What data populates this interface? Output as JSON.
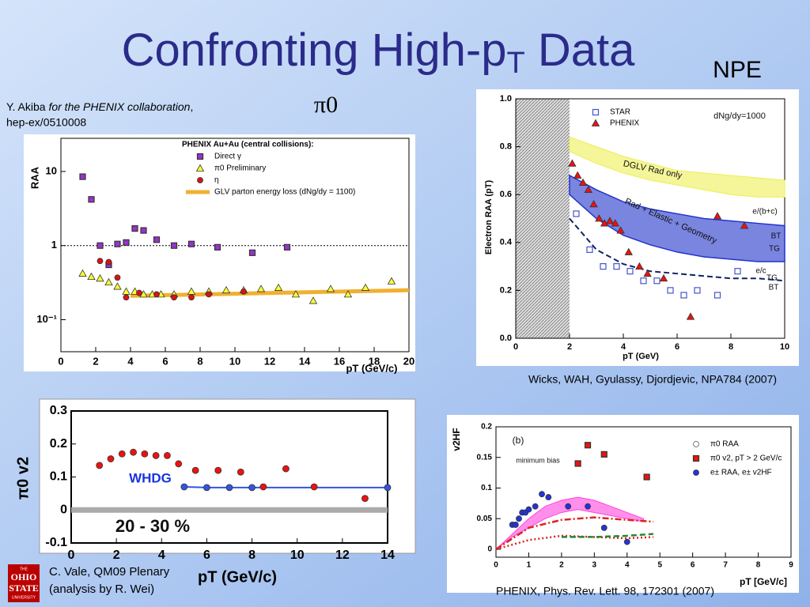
{
  "slide": {
    "title_parts": [
      "Confronting High-p",
      "T",
      " Data"
    ],
    "npe": "NPE",
    "pi0": "π0",
    "cite1_author": "Y. Akiba",
    "cite1_collab": "for the PHENIX collaboration",
    "cite1_comma": ",",
    "cite1_ref": "hep-ex/0510008",
    "cite2": "Wicks, WAH, Gyulassy, Djordjevic, NPA784 (2007)",
    "cite3_line1": "C. Vale, QM09 Plenary",
    "cite3_line2": "(analysis by R. Wei)",
    "cite4": "PHENIX, Phys. Rev. Lett. 98, 172301 (2007)",
    "logo": [
      "THE",
      "OHIO",
      "STATE",
      "UNIVERSITY"
    ]
  },
  "chart_data": [
    {
      "type": "scatter",
      "y_label": "RAA",
      "x_label": "pT (GeV/c)",
      "legend_title": "PHENIX Au+Au (central collisions):",
      "log_y": true,
      "xlim": [
        0,
        20
      ],
      "ylim": [
        0.037,
        28
      ],
      "xticks": [
        0,
        2,
        4,
        6,
        8,
        10,
        12,
        14,
        16,
        18,
        20
      ],
      "yticks": [
        {
          "value": 0.1,
          "label": "10⁻¹"
        },
        1,
        10
      ],
      "ref_y": 1,
      "annotations": [],
      "series": [
        {
          "name": "Direct γ",
          "color": "#9933cc",
          "marker": "square",
          "x": [
            1.25,
            1.75,
            2.25,
            2.75,
            3.25,
            3.75,
            4.25,
            4.75,
            5.5,
            6.5,
            7.5,
            9,
            11,
            13
          ],
          "values": [
            8.5,
            4.2,
            1,
            0.55,
            1.05,
            1.1,
            1.7,
            1.6,
            1.2,
            1.0,
            1.05,
            0.95,
            0.8,
            0.95
          ]
        },
        {
          "name": "π0 Preliminary",
          "color": "#ffff33",
          "marker": "triangle",
          "x": [
            1.25,
            1.75,
            2.25,
            2.75,
            3.25,
            3.75,
            4.25,
            4.75,
            5.25,
            5.75,
            6.5,
            7.5,
            8.5,
            9.5,
            10.5,
            11.5,
            12.5,
            13.5,
            14.5,
            15.5,
            16.5,
            17.5,
            19
          ],
          "values": [
            0.42,
            0.38,
            0.36,
            0.32,
            0.28,
            0.24,
            0.24,
            0.22,
            0.22,
            0.22,
            0.22,
            0.24,
            0.24,
            0.25,
            0.25,
            0.26,
            0.27,
            0.22,
            0.18,
            0.26,
            0.22,
            0.27,
            0.33
          ]
        },
        {
          "name": "η",
          "color": "#dd1111",
          "marker": "circle",
          "x": [
            2.25,
            2.75,
            3.25,
            3.75,
            4.5,
            5.5,
            6.5,
            7.5,
            8.5,
            10.5
          ],
          "values": [
            0.62,
            0.6,
            0.37,
            0.2,
            0.23,
            0.22,
            0.2,
            0.2,
            0.22,
            0.24
          ]
        },
        {
          "name": "GLV parton energy loss (dNg/dy = 1100)",
          "color": "#f0b030",
          "line": "solid",
          "width": 5,
          "x": [
            4,
            20
          ],
          "values": [
            0.21,
            0.25
          ]
        }
      ]
    },
    {
      "type": "scatter",
      "y_label": "Electron RAA (pT)",
      "x_label": "pT (GeV)",
      "log_y": false,
      "xlim": [
        0,
        10
      ],
      "ylim": [
        0,
        1.0
      ],
      "xticks": [
        0,
        2,
        4,
        6,
        8,
        10
      ],
      "yticks": [
        {
          "value": 0,
          "label": "0.0"
        },
        0.2,
        0.4,
        0.6,
        0.8,
        {
          "value": 1,
          "label": "1.0"
        }
      ],
      "shaded_x": [
        0,
        2
      ],
      "annotations": [
        "dNg/dy=1000",
        "DGLV Rad only",
        "Rad + Elastic + Geometry",
        "e/(b+c)",
        "BT",
        "TG",
        "e/c",
        "TG",
        "BT"
      ],
      "series": [
        {
          "color": "#eeee55",
          "line": "solid",
          "width": 1,
          "x": [
            2,
            3,
            4,
            5,
            6,
            7,
            8,
            9,
            10
          ],
          "values": [
            0.84,
            0.8,
            0.76,
            0.73,
            0.7,
            0.69,
            0.68,
            0.67,
            0.66
          ],
          "lower": [
            0.78,
            0.73,
            0.69,
            0.66,
            0.64,
            0.62,
            0.6,
            0.59,
            0.59
          ]
        },
        {
          "color": "#2233cc",
          "line": "solid",
          "width": 1.5,
          "x": [
            2,
            3,
            4,
            5,
            6,
            7,
            8,
            9,
            10
          ],
          "values": [
            0.68,
            0.62,
            0.57,
            0.54,
            0.52,
            0.5,
            0.49,
            0.48,
            0.47
          ],
          "lower": [
            0.6,
            0.5,
            0.43,
            0.39,
            0.36,
            0.34,
            0.33,
            0.32,
            0.32
          ]
        },
        {
          "color": "#112266",
          "line": "dashed",
          "width": 2,
          "x": [
            2,
            3,
            4,
            5,
            6,
            7,
            8,
            9,
            10
          ],
          "values": [
            0.5,
            0.37,
            0.31,
            0.28,
            0.27,
            0.26,
            0.25,
            0.25,
            0.24
          ]
        },
        {
          "name": "STAR",
          "color": "#4455cc",
          "marker": "open-square",
          "x": [
            2.25,
            2.75,
            3.25,
            3.75,
            4.25,
            4.75,
            5.25,
            5.75,
            6.25,
            6.75,
            7.5,
            8.25
          ],
          "values": [
            0.52,
            0.37,
            0.3,
            0.3,
            0.28,
            0.24,
            0.24,
            0.2,
            0.18,
            0.2,
            0.18,
            0.28
          ]
        },
        {
          "name": "PHENIX",
          "color": "#ee1111",
          "marker": "triangle",
          "x": [
            2.1,
            2.3,
            2.5,
            2.7,
            2.9,
            3.1,
            3.3,
            3.5,
            3.7,
            3.9,
            4.2,
            4.6,
            4.9,
            5.5,
            6.5,
            7.5,
            8.5
          ],
          "values": [
            0.73,
            0.68,
            0.65,
            0.62,
            0.56,
            0.5,
            0.48,
            0.49,
            0.48,
            0.45,
            0.36,
            0.3,
            0.27,
            0.25,
            0.09,
            0.51,
            0.47
          ]
        }
      ]
    },
    {
      "type": "scatter",
      "y_label": "π0 v2",
      "x_label": "pT (GeV/c)",
      "log_y": false,
      "xlim": [
        0,
        14
      ],
      "ylim": [
        -0.1,
        0.3
      ],
      "xticks": [
        0,
        2,
        4,
        6,
        8,
        10,
        12,
        14
      ],
      "yticks": [
        -0.1,
        0,
        0.1,
        0.2,
        0.3
      ],
      "annotations": [
        "WHDG",
        "20 - 30 %"
      ],
      "series": [
        {
          "color": "#aaaaaa",
          "line": "solid",
          "width": 7,
          "x": [
            0,
            14
          ],
          "values": [
            0,
            0
          ]
        },
        {
          "color": "#3355dd",
          "line": "solid",
          "width": 2,
          "marker": "circle",
          "x": [
            5,
            6,
            7,
            8,
            14
          ],
          "values": [
            0.07,
            0.068,
            0.068,
            0.068,
            0.068
          ]
        },
        {
          "color": "#ee1111",
          "marker": "circle",
          "x": [
            1.25,
            1.75,
            2.25,
            2.75,
            3.25,
            3.75,
            4.25,
            4.75,
            5.5,
            6.5,
            7.5,
            8.5,
            9.5,
            10.75,
            13
          ],
          "values": [
            0.135,
            0.155,
            0.17,
            0.175,
            0.17,
            0.165,
            0.165,
            0.14,
            0.12,
            0.12,
            0.115,
            0.07,
            0.125,
            0.07,
            0.035
          ]
        }
      ]
    },
    {
      "type": "scatter",
      "y_label": "v2HF",
      "x_label": "pT [GeV/c]",
      "log_y": false,
      "xlim": [
        0,
        9
      ],
      "ylim": [
        -0.013,
        0.2
      ],
      "xticks": [
        0,
        1,
        2,
        3,
        4,
        5,
        6,
        7,
        8,
        9
      ],
      "yticks": [
        0,
        0.05,
        0.1,
        0.15,
        0.2
      ],
      "annotations": [
        "(b)",
        "minimum bias"
      ],
      "series": [
        {
          "color": "#ff44dd",
          "line": "solid",
          "width": 1,
          "x": [
            0,
            0.5,
            1,
            1.5,
            2,
            2.5,
            3,
            3.5,
            4,
            4.5
          ],
          "values": [
            0,
            0.025,
            0.05,
            0.07,
            0.08,
            0.085,
            0.08,
            0.07,
            0.06,
            0.05
          ],
          "lower": [
            0,
            0.02,
            0.035,
            0.05,
            0.06,
            0.065,
            0.06,
            0.055,
            0.05,
            0.045
          ]
        },
        {
          "color": "#dd2222",
          "line": "dashdot",
          "width": 2.5,
          "x": [
            0,
            1,
            2,
            3,
            4,
            4.8
          ],
          "values": [
            0,
            0.035,
            0.048,
            0.052,
            0.048,
            0.045
          ]
        },
        {
          "color": "#dd2222",
          "line": "dotted",
          "width": 2.5,
          "x": [
            0,
            1,
            2,
            3,
            4,
            4.8
          ],
          "values": [
            0,
            0.015,
            0.022,
            0.02,
            0.018,
            0.02
          ]
        },
        {
          "color": "#228833",
          "line": "dashed",
          "width": 2.5,
          "x": [
            2,
            3,
            4,
            4.8
          ],
          "values": [
            0.02,
            0.02,
            0.022,
            0.025
          ]
        },
        {
          "name": "π0 RAA",
          "color": "#555555",
          "marker": "open-circle",
          "x": [],
          "values": []
        },
        {
          "name": "π0 v2, pT > 2 GeV/c",
          "color": "#ee1111",
          "marker": "square",
          "x": [
            2.5,
            2.8,
            3.3,
            4.6
          ],
          "values": [
            0.14,
            0.17,
            0.155,
            0.118
          ]
        },
        {
          "name": "e± RAA, e± v2HF",
          "color": "#2233dd",
          "marker": "circle",
          "x": [
            0.5,
            0.6,
            0.7,
            0.8,
            0.9,
            1.0,
            1.2,
            1.4,
            1.6,
            2.2,
            2.8,
            3.3,
            4.0
          ],
          "values": [
            0.04,
            0.04,
            0.05,
            0.06,
            0.06,
            0.065,
            0.07,
            0.09,
            0.085,
            0.07,
            0.07,
            0.035,
            0.012
          ]
        }
      ]
    }
  ]
}
